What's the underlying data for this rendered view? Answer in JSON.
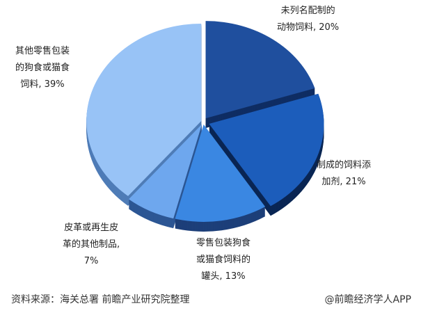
{
  "chart_data": {
    "type": "pie",
    "style": "3d-exploded",
    "start": "top, clockwise",
    "slices": [
      {
        "label": "未列名配制的\n动物饲料, 20%",
        "value": 20,
        "color": "#1f4f9e",
        "side": "#0f2d63"
      },
      {
        "label": "制成的饲料添\n加剂, 21%",
        "value": 21,
        "color": "#1c5dbb",
        "side": "#0a2654"
      },
      {
        "label": "零售包装狗食\n或猫食饲料的\n罐头, 13%",
        "value": 13,
        "color": "#3a87e2",
        "side": "#1d3f79"
      },
      {
        "label": "皮革或再生皮\n革的其他制品,\n7%",
        "value": 7,
        "color": "#6ea7ee",
        "side": "#2c5694"
      },
      {
        "label": "其他零售包装\n的狗食或猫食\n饲料, 39%",
        "value": 39,
        "color": "#98c3f6",
        "side": "#4f7cb7"
      }
    ]
  },
  "footer": {
    "source": "资料来源：海关总署 前瞻产业研究院整理",
    "credit": "@前瞻经济学人APP"
  }
}
